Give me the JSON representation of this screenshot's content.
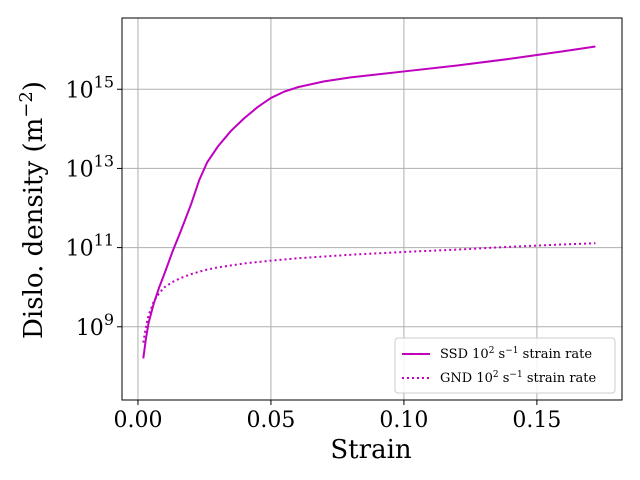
{
  "chart_data": {
    "type": "line",
    "xlabel": "Strain",
    "ylabel": "Dislo. density (m",
    "ylabel_sup": "−2",
    "ylabel_tail": ")",
    "xlim": [
      -0.006,
      0.182
    ],
    "ylim_log10": [
      7.15,
      16.8
    ],
    "yscale": "log",
    "grid": true,
    "legend_position": "lower-right",
    "x_ticks": [
      {
        "value": 0.0,
        "label": "0.00"
      },
      {
        "value": 0.05,
        "label": "0.05"
      },
      {
        "value": 0.1,
        "label": "0.10"
      },
      {
        "value": 0.15,
        "label": "0.15"
      }
    ],
    "y_ticks": [
      {
        "exp": 9,
        "base": "10",
        "sup": "9"
      },
      {
        "exp": 11,
        "base": "10",
        "sup": "11"
      },
      {
        "exp": 13,
        "base": "10",
        "sup": "13"
      },
      {
        "exp": 15,
        "base": "10",
        "sup": "15"
      }
    ],
    "series": [
      {
        "name": "SSD 10² s⁻¹ strain rate",
        "legend": {
          "pre": "SSD 10",
          "sup1": "2",
          "mid": " s",
          "sup2": "−1",
          "post": " strain rate"
        },
        "color": "#bf00bf",
        "style": "solid",
        "x": [
          0.002,
          0.003,
          0.004,
          0.006,
          0.008,
          0.01,
          0.013,
          0.016,
          0.02,
          0.023,
          0.026,
          0.03,
          0.035,
          0.04,
          0.045,
          0.05,
          0.055,
          0.06,
          0.07,
          0.08,
          0.1,
          0.12,
          0.14,
          0.16,
          0.172
        ],
        "log10_y": [
          8.2,
          8.7,
          9.1,
          9.6,
          10.0,
          10.35,
          10.9,
          11.4,
          12.1,
          12.7,
          13.15,
          13.55,
          13.95,
          14.27,
          14.55,
          14.78,
          14.94,
          15.05,
          15.2,
          15.3,
          15.45,
          15.6,
          15.77,
          15.96,
          16.08
        ]
      },
      {
        "name": "GND 10² s⁻¹ strain rate",
        "legend": {
          "pre": "GND 10",
          "sup1": "2",
          "mid": " s",
          "sup2": "−1",
          "post": " strain rate"
        },
        "color": "#bf00bf",
        "style": "dotted",
        "x": [
          0.002,
          0.003,
          0.004,
          0.006,
          0.008,
          0.01,
          0.013,
          0.016,
          0.02,
          0.025,
          0.03,
          0.04,
          0.05,
          0.06,
          0.08,
          0.1,
          0.12,
          0.14,
          0.16,
          0.172
        ],
        "log10_y": [
          8.6,
          9.0,
          9.3,
          9.65,
          9.85,
          10.0,
          10.13,
          10.23,
          10.33,
          10.43,
          10.5,
          10.6,
          10.67,
          10.73,
          10.82,
          10.89,
          10.95,
          11.02,
          11.08,
          11.11
        ]
      }
    ]
  }
}
